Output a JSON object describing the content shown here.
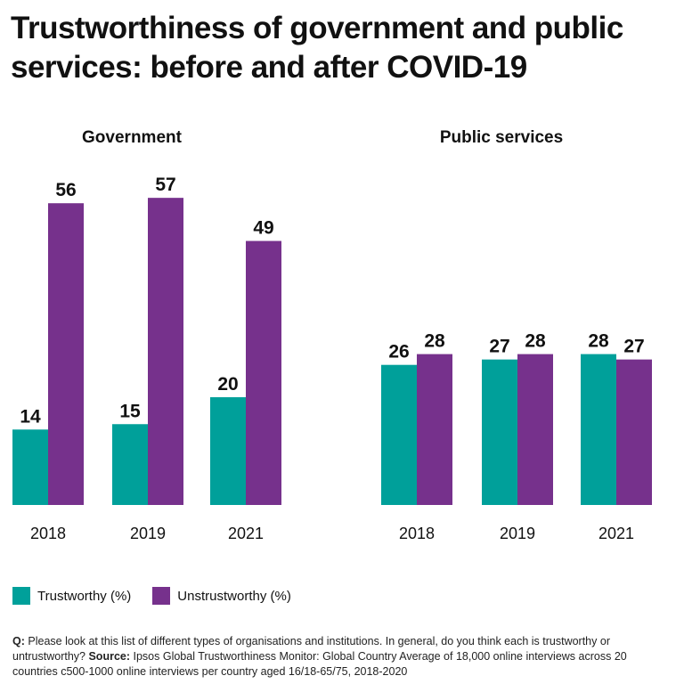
{
  "title_line1": "Trustworthiness of government and public",
  "title_line2": "services: before and after COVID-19",
  "colors": {
    "trustworthy": "#00A09A",
    "untrustworthy": "#76318C"
  },
  "chart_data": [
    {
      "type": "bar",
      "title": "Government",
      "categories": [
        "2018",
        "2019",
        "2021"
      ],
      "series": [
        {
          "name": "Trustworthy (%)",
          "values": [
            14,
            15,
            20
          ]
        },
        {
          "name": "Unstrustworthy (%)",
          "values": [
            56,
            57,
            49
          ]
        }
      ],
      "ylim": [
        0,
        57
      ]
    },
    {
      "type": "bar",
      "title": "Public services",
      "categories": [
        "2018",
        "2019",
        "2021"
      ],
      "series": [
        {
          "name": "Trustworthy (%)",
          "values": [
            26,
            27,
            28
          ]
        },
        {
          "name": "Unstrustworthy (%)",
          "values": [
            28,
            28,
            27
          ]
        }
      ],
      "ylim": [
        0,
        57
      ]
    }
  ],
  "legend": {
    "trustworthy_label": "Trustworthy (%)",
    "untrustworthy_label": "Unstrustworthy (%)"
  },
  "footnote": {
    "q_label": "Q:",
    "q_text": "Please look at this list of different types of organisations and institutions. In general, do you think each is trustworthy or untrustworthy?",
    "source_label": "Source:",
    "source_text": "Ipsos Global Trustworthiness Monitor: Global Country Average of 18,000 online interviews across 20 countries c500-1000 online interviews per country aged 16/18-65/75, 2018-2020"
  }
}
